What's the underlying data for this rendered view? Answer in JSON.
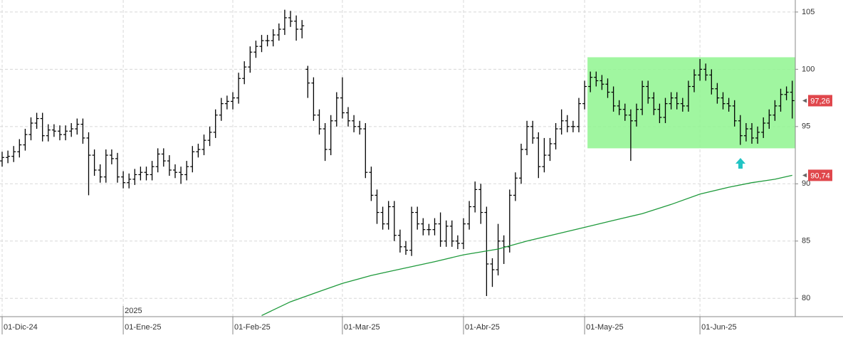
{
  "chart_data": {
    "type": "ohlc",
    "categories": [
      "01-Dic-24",
      null,
      null,
      null,
      null,
      null,
      null,
      null,
      null,
      null,
      null,
      null,
      null,
      null,
      null,
      null,
      null,
      null,
      null,
      null,
      null,
      "01-Ene-25",
      null,
      null,
      null,
      null,
      null,
      null,
      null,
      null,
      null,
      null,
      null,
      null,
      null,
      null,
      null,
      null,
      null,
      null,
      "01-Feb-25",
      null,
      null,
      null,
      null,
      null,
      null,
      null,
      null,
      null,
      null,
      null,
      null,
      null,
      null,
      null,
      null,
      null,
      null,
      "01-Mar-25",
      null,
      null,
      null,
      null,
      null,
      null,
      null,
      null,
      null,
      null,
      null,
      null,
      null,
      null,
      null,
      null,
      null,
      null,
      null,
      null,
      "01-Abr-25",
      null,
      null,
      null,
      null,
      null,
      null,
      null,
      null,
      null,
      null,
      null,
      null,
      null,
      null,
      null,
      null,
      null,
      null,
      null,
      null,
      "01-May-25",
      null,
      null,
      null,
      null,
      null,
      null,
      null,
      null,
      null,
      null,
      null,
      null,
      null,
      null,
      null,
      null,
      null,
      null,
      null,
      "01-Jun-25",
      null,
      null,
      null,
      null,
      null,
      null,
      null,
      null,
      null,
      null,
      null,
      null,
      null,
      null,
      null,
      null
    ],
    "year_label": "2025",
    "year_index": 21,
    "open": [
      92.0,
      92.3,
      92.4,
      92.8,
      93.4,
      94.3,
      95.3,
      95.7,
      94.2,
      94.7,
      94.6,
      94.3,
      94.6,
      94.8,
      95.2,
      94.0,
      92.5,
      91.2,
      90.6,
      92.5,
      92.2,
      90.6,
      90.1,
      90.4,
      90.8,
      91.0,
      90.8,
      91.5,
      92.6,
      92.0,
      91.2,
      91.0,
      90.8,
      91.5,
      92.8,
      93.0,
      93.8,
      94.5,
      96.0,
      97.0,
      97.2,
      97.5,
      99.2,
      100.2,
      101.5,
      102.0,
      102.5,
      102.5,
      103.0,
      103.5,
      104.5,
      104.2,
      103.5,
      100.0,
      98.8,
      96.0,
      94.8,
      93.0,
      95.5,
      97.5,
      96.2,
      95.5,
      95.0,
      94.8,
      91.0,
      89.0,
      87.5,
      86.5,
      88.0,
      85.5,
      84.5,
      84.2,
      87.5,
      86.5,
      86.0,
      86.0,
      86.5,
      85.0,
      86.3,
      85.0,
      84.8,
      86.5,
      88.0,
      89.5,
      87.5,
      83.0,
      82.5,
      85.0,
      84.5,
      89.0,
      90.5,
      93.0,
      95.0,
      94.0,
      91.5,
      92.5,
      93.5,
      94.8,
      95.5,
      95.0,
      95.0,
      97.0,
      98.5,
      99.3,
      99.0,
      98.7,
      98.0,
      96.8,
      96.5,
      96.0,
      95.5,
      96.5,
      98.5,
      97.5,
      96.5,
      95.8,
      97.0,
      97.5,
      97.0,
      96.8,
      98.5,
      99.5,
      100.0,
      99.5,
      98.3,
      97.5,
      97.0,
      96.8,
      95.5,
      94.2,
      94.8,
      94.0,
      94.5,
      95.3,
      96.0,
      96.8,
      97.8,
      98.0
    ],
    "high": [
      92.8,
      92.9,
      93.3,
      93.9,
      94.8,
      95.8,
      96.2,
      96.2,
      95.2,
      95.2,
      95.1,
      95.1,
      95.3,
      95.7,
      95.7,
      94.5,
      93.0,
      91.7,
      93.0,
      93.0,
      92.7,
      91.1,
      90.9,
      91.3,
      91.5,
      91.5,
      92.0,
      93.1,
      93.1,
      92.5,
      91.7,
      91.5,
      92.0,
      93.3,
      93.5,
      94.3,
      95.0,
      96.5,
      97.5,
      97.7,
      98.0,
      99.7,
      100.7,
      102.0,
      102.5,
      103.0,
      103.0,
      103.5,
      104.0,
      105.2,
      105.1,
      104.7,
      104.3,
      100.3,
      99.3,
      96.5,
      95.3,
      96.0,
      98.0,
      99.3,
      96.7,
      96.0,
      95.5,
      95.3,
      91.5,
      89.5,
      88.0,
      88.5,
      88.5,
      86.0,
      85.0,
      88.0,
      88.0,
      87.0,
      86.5,
      87.0,
      87.5,
      86.8,
      86.8,
      85.5,
      87.0,
      88.5,
      90.2,
      90.0,
      88.0,
      83.5,
      86.5,
      85.5,
      89.5,
      91.0,
      93.5,
      95.5,
      95.5,
      94.5,
      94.0,
      94.0,
      95.3,
      96.5,
      96.0,
      95.5,
      97.5,
      99.0,
      99.8,
      99.8,
      99.5,
      99.2,
      98.5,
      97.3,
      97.0,
      96.5,
      97.0,
      99.0,
      99.0,
      98.0,
      97.0,
      97.5,
      98.0,
      98.0,
      97.5,
      99.0,
      100.0,
      100.9,
      100.5,
      100.0,
      98.8,
      98.0,
      97.5,
      97.3,
      96.0,
      95.3,
      95.3,
      95.0,
      95.8,
      96.5,
      97.3,
      98.3,
      98.5,
      99.0
    ],
    "low": [
      91.5,
      91.8,
      91.9,
      92.3,
      92.9,
      93.8,
      94.8,
      93.7,
      93.7,
      94.1,
      93.8,
      93.8,
      94.1,
      94.3,
      93.5,
      89.0,
      90.7,
      90.1,
      90.1,
      91.7,
      90.1,
      89.6,
      89.6,
      89.9,
      90.3,
      90.3,
      90.3,
      91.0,
      91.5,
      90.7,
      90.5,
      90.0,
      90.3,
      91.0,
      92.3,
      92.5,
      93.3,
      94.0,
      95.5,
      96.5,
      96.5,
      97.0,
      98.7,
      99.7,
      101.0,
      101.5,
      102.0,
      102.0,
      102.5,
      103.0,
      103.7,
      102.5,
      102.7,
      97.5,
      95.5,
      94.3,
      92.0,
      92.5,
      95.0,
      95.7,
      95.0,
      94.5,
      94.3,
      90.5,
      88.5,
      86.5,
      86.0,
      86.0,
      85.0,
      84.0,
      83.8,
      83.7,
      86.0,
      85.5,
      85.5,
      85.5,
      84.5,
      84.5,
      84.5,
      84.3,
      84.3,
      86.0,
      87.5,
      86.5,
      80.2,
      81.0,
      82.0,
      83.0,
      84.0,
      88.5,
      90.0,
      92.5,
      93.5,
      90.5,
      91.0,
      92.0,
      93.0,
      94.3,
      94.5,
      94.5,
      94.5,
      96.5,
      98.0,
      98.5,
      98.2,
      97.5,
      96.3,
      96.0,
      95.5,
      92.0,
      95.0,
      96.0,
      97.0,
      96.0,
      95.3,
      95.3,
      96.5,
      96.5,
      96.3,
      96.3,
      98.0,
      99.0,
      99.0,
      97.8,
      97.0,
      96.5,
      96.3,
      95.0,
      93.4,
      93.7,
      93.5,
      93.5,
      94.0,
      94.8,
      95.5,
      96.3,
      97.3,
      95.7
    ],
    "close": [
      92.3,
      92.4,
      92.8,
      93.4,
      94.3,
      95.3,
      95.7,
      94.2,
      94.7,
      94.6,
      94.3,
      94.6,
      94.8,
      95.2,
      94.0,
      92.5,
      91.2,
      90.6,
      92.5,
      92.2,
      90.6,
      90.1,
      90.4,
      90.8,
      91.0,
      90.8,
      91.5,
      92.6,
      92.0,
      91.2,
      91.0,
      90.8,
      91.5,
      92.8,
      93.0,
      93.8,
      94.5,
      96.0,
      97.0,
      97.2,
      97.5,
      99.2,
      100.2,
      101.5,
      102.0,
      102.5,
      102.5,
      103.0,
      103.5,
      104.5,
      104.2,
      103.5,
      103.8,
      98.8,
      96.0,
      94.8,
      93.0,
      95.5,
      97.5,
      96.2,
      95.5,
      95.0,
      94.8,
      91.0,
      89.0,
      87.5,
      86.5,
      88.0,
      85.5,
      84.5,
      84.2,
      87.5,
      86.5,
      86.0,
      86.0,
      86.5,
      85.0,
      86.3,
      85.0,
      84.8,
      86.5,
      88.0,
      89.5,
      87.5,
      83.0,
      82.5,
      85.0,
      84.5,
      89.0,
      90.5,
      93.0,
      95.0,
      94.0,
      91.5,
      92.5,
      93.5,
      94.8,
      95.5,
      95.0,
      95.0,
      97.0,
      98.5,
      99.3,
      99.0,
      98.7,
      98.0,
      96.8,
      96.5,
      96.0,
      95.5,
      96.5,
      98.5,
      97.5,
      96.5,
      95.8,
      97.0,
      97.5,
      97.0,
      96.8,
      98.5,
      99.5,
      100.0,
      99.5,
      98.3,
      97.5,
      97.0,
      96.8,
      95.5,
      94.2,
      94.8,
      94.0,
      94.5,
      95.3,
      96.0,
      96.8,
      97.8,
      98.0,
      97.26
    ],
    "bar_color": "#000000",
    "moving_average": {
      "color": "#1f9a3c",
      "x": [
        45,
        50,
        55,
        59,
        64,
        69,
        75,
        80,
        86,
        91,
        96,
        101,
        106,
        111,
        116,
        121,
        126,
        130,
        134,
        137
      ],
      "values": [
        78.5,
        79.7,
        80.6,
        81.3,
        82.0,
        82.55,
        83.2,
        83.8,
        84.3,
        85.0,
        85.6,
        86.2,
        86.8,
        87.4,
        88.2,
        89.1,
        89.7,
        90.1,
        90.4,
        90.74
      ]
    },
    "price_labels": [
      {
        "value": 97.26,
        "label": "97,26",
        "color": "#e0474c"
      },
      {
        "value": 90.74,
        "label": "90,74",
        "color": "#e0474c"
      }
    ],
    "highlight": {
      "x_range": [
        101.5,
        137.5
      ],
      "y_range": [
        93.1,
        101.05
      ],
      "color": "#8ff58f"
    },
    "ylim": [
      78.4,
      106.05
    ],
    "yticks": [
      80,
      85,
      90,
      95,
      100,
      105
    ],
    "grid": true
  }
}
